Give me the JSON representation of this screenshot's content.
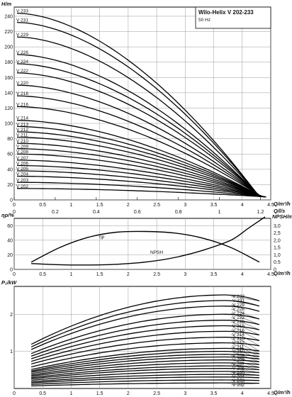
{
  "chart_data": [
    {
      "type": "line",
      "title": "Wilo-Helix V 202-233",
      "subtitle": "50 Hz",
      "ylabel": "H/m",
      "xlabel": "Q/m³/h",
      "xlabel_secondary": "Q/l/s",
      "xlim": [
        0,
        4.5
      ],
      "ylim": [
        0,
        252
      ],
      "xticks": [
        "0",
        "0.5",
        "1",
        "1.5",
        "2",
        "2.5",
        "3",
        "3.5",
        "4",
        "4.5"
      ],
      "yticks": [
        "0",
        "20",
        "40",
        "60",
        "80",
        "100",
        "120",
        "140",
        "160",
        "180",
        "200",
        "220",
        "240"
      ],
      "xticks_secondary": [
        "0",
        "0.2",
        "0.4",
        "0.6",
        "0.8",
        "1",
        "1.2"
      ],
      "grid": true,
      "series": [
        {
          "name": "V 233",
          "values": [
            244,
            4
          ]
        },
        {
          "name": "V 231",
          "values": [
            232,
            4
          ]
        },
        {
          "name": "V 229",
          "values": [
            213,
            4
          ]
        },
        {
          "name": "V 226",
          "values": [
            190,
            4
          ]
        },
        {
          "name": "V 224",
          "values": [
            178,
            4
          ]
        },
        {
          "name": "V 222",
          "values": [
            166,
            4
          ]
        },
        {
          "name": "V 220",
          "values": [
            150,
            4
          ]
        },
        {
          "name": "V 218",
          "values": [
            136,
            4
          ]
        },
        {
          "name": "V 216",
          "values": [
            122,
            4
          ]
        },
        {
          "name": "V 214",
          "values": [
            104,
            4
          ]
        },
        {
          "name": "V 213",
          "values": [
            96,
            4
          ]
        },
        {
          "name": "V 212",
          "values": [
            89,
            4
          ]
        },
        {
          "name": "V 211",
          "values": [
            82,
            4
          ]
        },
        {
          "name": "V 210",
          "values": [
            74,
            4
          ]
        },
        {
          "name": "V 209",
          "values": [
            67,
            4
          ]
        },
        {
          "name": "V 208",
          "values": [
            60,
            4
          ]
        },
        {
          "name": "V 207",
          "values": [
            52,
            4
          ]
        },
        {
          "name": "V 206",
          "values": [
            45,
            4
          ]
        },
        {
          "name": "V 205",
          "values": [
            38,
            4
          ]
        },
        {
          "name": "V 204",
          "values": [
            31,
            4
          ]
        },
        {
          "name": "V 203",
          "values": [
            23,
            4
          ]
        },
        {
          "name": "V 202",
          "values": [
            15,
            4
          ]
        }
      ]
    },
    {
      "type": "line",
      "ylabel": "ηp/%",
      "ylabel_right": "NPSH/m",
      "xlabel": "Q/m³/h",
      "xlim": [
        0,
        4.5
      ],
      "ylim": [
        0,
        70
      ],
      "ylim_right": [
        0,
        3.5
      ],
      "xticks": [
        "0",
        "0.5",
        "1",
        "1.5",
        "2",
        "2.5",
        "3",
        "3.5",
        "4",
        "4.5"
      ],
      "yticks": [
        "0",
        "20",
        "40",
        "60"
      ],
      "yticks_right": [
        "0",
        "0.5",
        "1,0",
        "1,5",
        "2,0",
        "2,5",
        "3,0"
      ],
      "grid": true,
      "series": [
        {
          "name": "ηp",
          "x": [
            0.3,
            0.8,
            1.3,
            1.8,
            2.3,
            2.8,
            3.3,
            3.8,
            4.3
          ],
          "values": [
            10,
            30,
            44,
            51,
            52,
            50,
            43,
            30,
            10
          ]
        },
        {
          "name": "NPSH",
          "x": [
            0.3,
            0.8,
            1.3,
            1.8,
            2.3,
            2.8,
            3.3,
            3.8,
            4.1,
            4.4
          ],
          "values": [
            0.4,
            0.32,
            0.3,
            0.35,
            0.5,
            0.8,
            1.3,
            2.0,
            2.8,
            3.6
          ]
        }
      ]
    },
    {
      "type": "line",
      "ylabel": "P₂/kW",
      "xlabel": "Q/m³/h",
      "xlim": [
        0,
        4.5
      ],
      "ylim": [
        0,
        2.75
      ],
      "xticks": [
        "0",
        "0.5",
        "1",
        "1.5",
        "2",
        "2.5",
        "3",
        "3.5",
        "4",
        "4.5"
      ],
      "yticks": [
        "1",
        "2"
      ],
      "grid": true,
      "series": [
        {
          "name": "V 233",
          "values": [
            1.19,
            2.52
          ]
        },
        {
          "name": "V 231",
          "values": [
            1.12,
            2.37
          ]
        },
        {
          "name": "V 229",
          "values": [
            1.05,
            2.22
          ]
        },
        {
          "name": "V 226",
          "values": [
            0.94,
            2.0
          ]
        },
        {
          "name": "V 224",
          "values": [
            0.87,
            1.84
          ]
        },
        {
          "name": "V 222",
          "values": [
            0.8,
            1.69
          ]
        },
        {
          "name": "V 220",
          "values": [
            0.73,
            1.54
          ]
        },
        {
          "name": "V 218",
          "values": [
            0.66,
            1.38
          ]
        },
        {
          "name": "V 216",
          "values": [
            0.58,
            1.23
          ]
        },
        {
          "name": "V 214",
          "values": [
            0.51,
            1.08
          ]
        },
        {
          "name": "V 213",
          "values": [
            0.47,
            1.0
          ]
        },
        {
          "name": "V 212",
          "values": [
            0.44,
            0.92
          ]
        },
        {
          "name": "V 211",
          "values": [
            0.4,
            0.85
          ]
        },
        {
          "name": "V 210",
          "values": [
            0.36,
            0.77
          ]
        },
        {
          "name": "V 209",
          "values": [
            0.33,
            0.69
          ]
        },
        {
          "name": "V 208",
          "values": [
            0.29,
            0.61
          ]
        },
        {
          "name": "V 207",
          "values": [
            0.26,
            0.54
          ]
        },
        {
          "name": "V 206",
          "values": [
            0.22,
            0.46
          ]
        },
        {
          "name": "V 205",
          "values": [
            0.18,
            0.38
          ]
        },
        {
          "name": "V 204",
          "values": [
            0.15,
            0.31
          ]
        },
        {
          "name": "V 203",
          "values": [
            0.11,
            0.23
          ]
        },
        {
          "name": "V 202",
          "values": [
            0.07,
            0.15
          ]
        }
      ]
    }
  ]
}
